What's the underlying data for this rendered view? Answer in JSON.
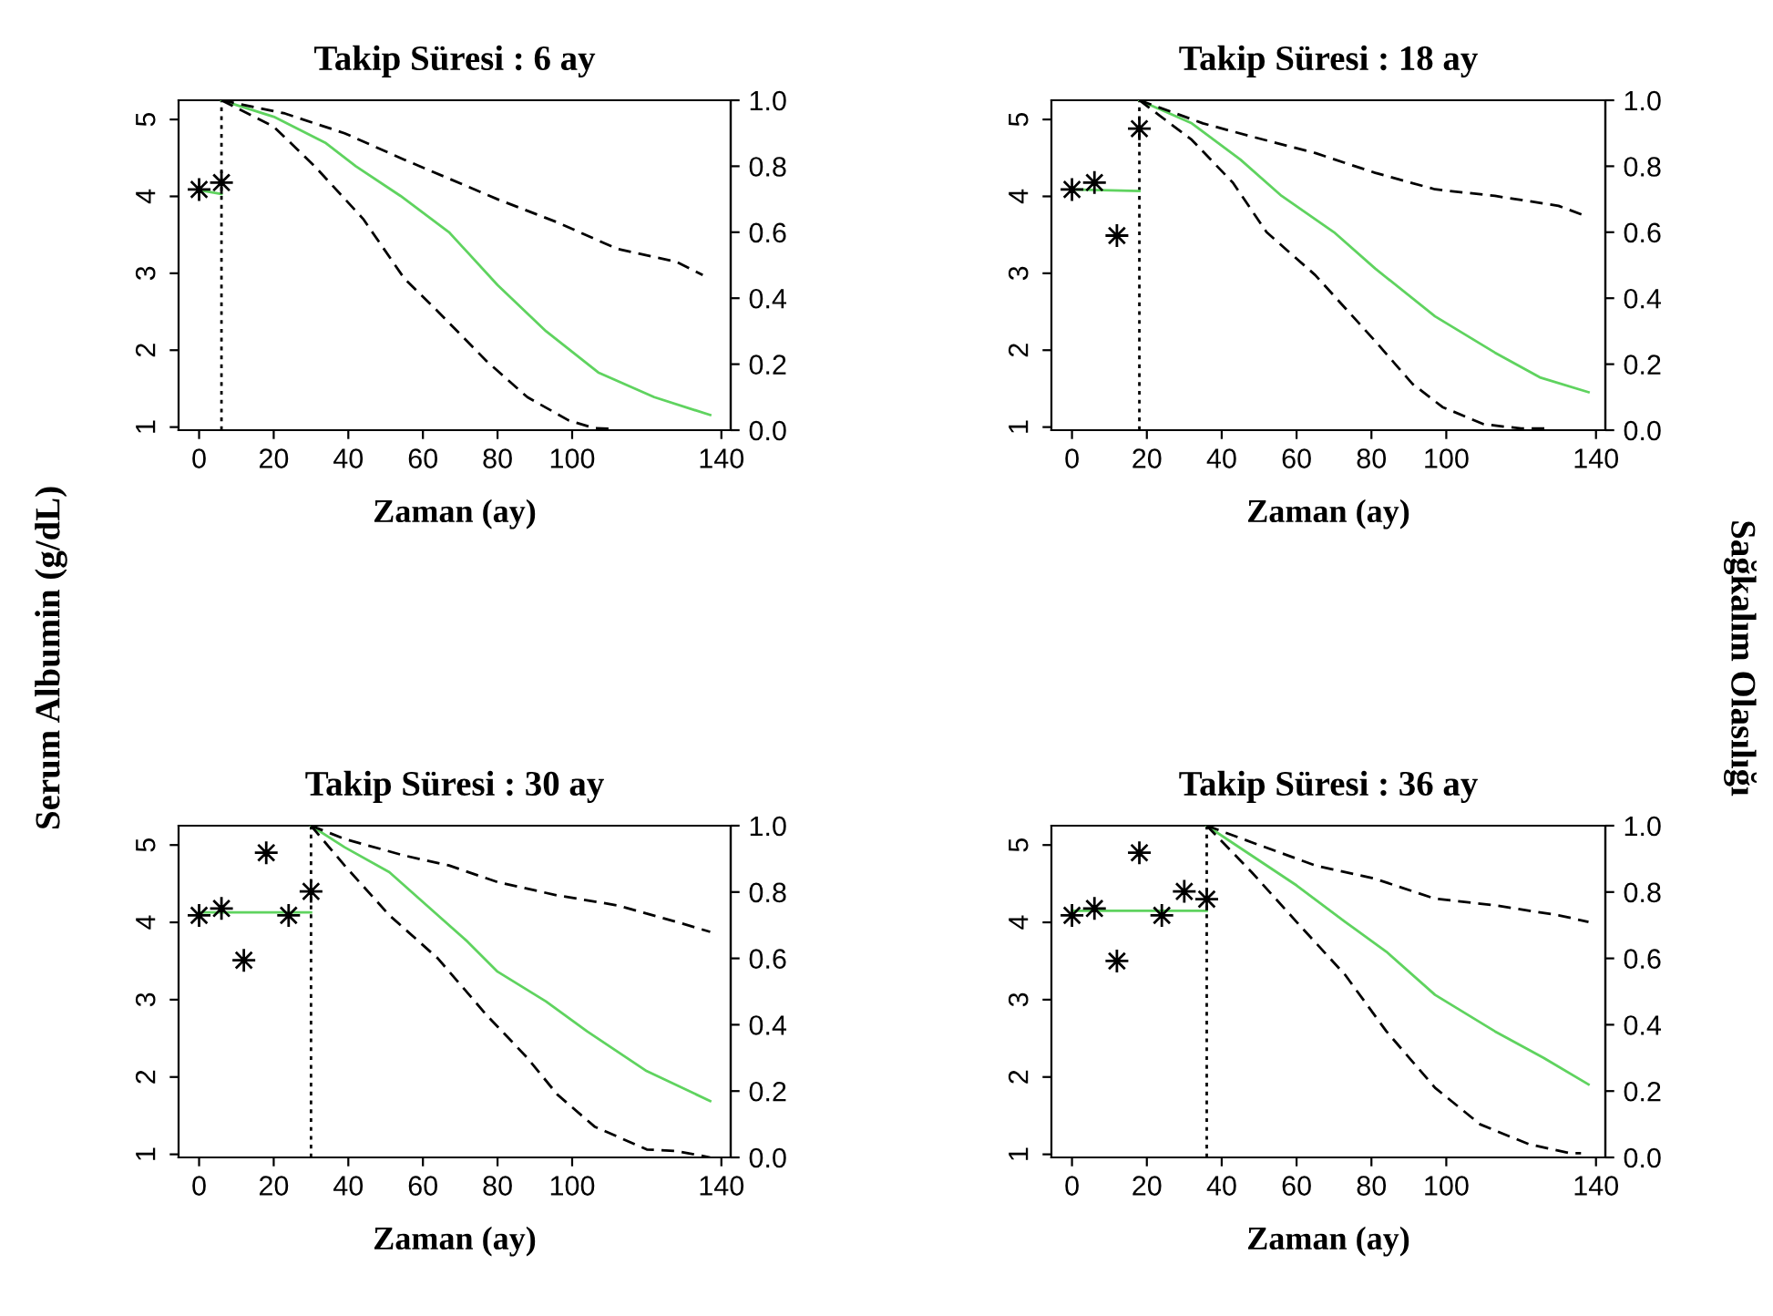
{
  "chart_data": [
    {
      "type": "line",
      "title": "Takip Süresi : 6 ay",
      "xlabel": "Zaman (ay)",
      "ylabel": "Serum Albumin (g/dL)",
      "xlim": [
        -5.5,
        142.5
      ],
      "xticks": [
        0,
        20,
        40,
        60,
        80,
        100,
        140
      ],
      "ylim": [
        0.96,
        5.25
      ],
      "yticks": [
        1,
        2,
        3,
        4,
        5
      ],
      "y2lim": [
        0,
        1
      ],
      "y2ticks": [
        {
          "value": 0,
          "label": "0.0"
        },
        {
          "value": 0.2,
          "label": "0.2"
        },
        {
          "value": 0.4,
          "label": "0.4"
        },
        {
          "value": 0.6,
          "label": "0.6"
        },
        {
          "value": 0.8,
          "label": "0.8"
        },
        {
          "value": 1,
          "label": "1.0"
        }
      ],
      "grid": false,
      "legend": false,
      "ref_lines": [
        {
          "axis": "x",
          "value": 6,
          "line_style": "dotted",
          "color": "#000000"
        }
      ],
      "series": [
        {
          "type": "scatter",
          "marker": "star",
          "color": "#000000",
          "x": [
            0,
            6
          ],
          "values": [
            4.09,
            4.18
          ]
        },
        {
          "color": "#5fd35f",
          "x": [
            0,
            6
          ],
          "values": [
            4.08,
            4.03
          ]
        },
        {
          "axis": "y2",
          "color": "#5fd35f",
          "x": [
            6,
            20,
            34,
            42,
            54,
            67,
            80,
            93,
            107,
            122,
            137
          ],
          "values": [
            1.0,
            0.95,
            0.87,
            0.8,
            0.71,
            0.6,
            0.44,
            0.3,
            0.175,
            0.1,
            0.046
          ]
        },
        {
          "axis": "y2",
          "color": "#000000",
          "line_style": "dashed",
          "x": [
            6,
            23,
            39,
            55,
            80,
            96,
            112,
            128,
            135
          ],
          "values": [
            1.0,
            0.96,
            0.9,
            0.82,
            0.7,
            0.63,
            0.55,
            0.51,
            0.47
          ]
        },
        {
          "axis": "y2",
          "color": "#000000",
          "line_style": "dashed",
          "x": [
            6,
            20,
            31,
            44,
            55,
            64,
            77,
            88,
            99,
            106,
            111
          ],
          "values": [
            1.0,
            0.92,
            0.8,
            0.64,
            0.46,
            0.36,
            0.21,
            0.1,
            0.03,
            0.006,
            0.004
          ]
        }
      ]
    },
    {
      "type": "line",
      "title": "Takip Süresi : 18 ay",
      "xlabel": "Zaman (ay)",
      "y2label": "Sağkalım Olasılığı",
      "xlim": [
        -5.5,
        142.5
      ],
      "xticks": [
        0,
        20,
        40,
        60,
        80,
        100,
        140
      ],
      "ylim": [
        0.96,
        5.25
      ],
      "yticks": [
        1,
        2,
        3,
        4,
        5
      ],
      "y2lim": [
        0,
        1
      ],
      "y2ticks": [
        {
          "value": 0,
          "label": "0.0"
        },
        {
          "value": 0.2,
          "label": "0.2"
        },
        {
          "value": 0.4,
          "label": "0.4"
        },
        {
          "value": 0.6,
          "label": "0.6"
        },
        {
          "value": 0.8,
          "label": "0.8"
        },
        {
          "value": 1,
          "label": "1.0"
        }
      ],
      "grid": false,
      "legend": false,
      "ref_lines": [
        {
          "axis": "x",
          "value": 18,
          "line_style": "dotted",
          "color": "#000000"
        }
      ],
      "series": [
        {
          "type": "scatter",
          "marker": "star",
          "color": "#000000",
          "x": [
            0,
            6,
            12,
            18
          ],
          "values": [
            4.09,
            4.18,
            3.49,
            4.88
          ]
        },
        {
          "color": "#5fd35f",
          "x": [
            0,
            18
          ],
          "values": [
            4.09,
            4.07
          ]
        },
        {
          "axis": "y2",
          "color": "#5fd35f",
          "x": [
            18,
            32,
            45,
            56,
            70,
            81,
            97,
            113,
            125,
            138
          ],
          "values": [
            1.0,
            0.93,
            0.82,
            0.71,
            0.6,
            0.49,
            0.345,
            0.235,
            0.16,
            0.115
          ]
        },
        {
          "axis": "y2",
          "color": "#000000",
          "line_style": "dashed",
          "x": [
            18,
            35,
            48,
            65,
            81,
            97,
            113,
            130,
            137
          ],
          "values": [
            1.0,
            0.93,
            0.89,
            0.84,
            0.78,
            0.73,
            0.71,
            0.68,
            0.65
          ]
        },
        {
          "axis": "y2",
          "color": "#000000",
          "line_style": "dashed",
          "x": [
            18,
            32,
            43,
            52,
            65,
            81,
            91,
            99,
            110,
            120,
            127
          ],
          "values": [
            1.0,
            0.88,
            0.75,
            0.6,
            0.47,
            0.27,
            0.14,
            0.07,
            0.018,
            0.005,
            0.005
          ]
        }
      ]
    },
    {
      "type": "line",
      "title": "Takip Süresi : 30 ay",
      "xlabel": "Zaman (ay)",
      "xlim": [
        -5.5,
        142.5
      ],
      "xticks": [
        0,
        20,
        40,
        60,
        80,
        100,
        140
      ],
      "ylim": [
        0.96,
        5.25
      ],
      "yticks": [
        1,
        2,
        3,
        4,
        5
      ],
      "y2lim": [
        0,
        1
      ],
      "y2ticks": [
        {
          "value": 0,
          "label": "0.0"
        },
        {
          "value": 0.2,
          "label": "0.2"
        },
        {
          "value": 0.4,
          "label": "0.4"
        },
        {
          "value": 0.6,
          "label": "0.6"
        },
        {
          "value": 0.8,
          "label": "0.8"
        },
        {
          "value": 1,
          "label": "1.0"
        }
      ],
      "grid": false,
      "legend": false,
      "ref_lines": [
        {
          "axis": "x",
          "value": 30,
          "line_style": "dotted",
          "color": "#000000"
        }
      ],
      "series": [
        {
          "type": "scatter",
          "marker": "star",
          "color": "#000000",
          "x": [
            0,
            6,
            12,
            18,
            24,
            30
          ],
          "values": [
            4.09,
            4.18,
            3.51,
            4.9,
            4.09,
            4.4
          ]
        },
        {
          "color": "#5fd35f",
          "x": [
            0,
            30
          ],
          "values": [
            4.13,
            4.13
          ]
        },
        {
          "axis": "y2",
          "color": "#5fd35f",
          "x": [
            30,
            39,
            51,
            60,
            72,
            80,
            93,
            104,
            120,
            137
          ],
          "values": [
            1.0,
            0.935,
            0.86,
            0.77,
            0.65,
            0.56,
            0.47,
            0.38,
            0.26,
            0.17
          ]
        },
        {
          "axis": "y2",
          "color": "#000000",
          "line_style": "dashed",
          "x": [
            30,
            39,
            55,
            67,
            80,
            96,
            112,
            128,
            137
          ],
          "values": [
            1.0,
            0.96,
            0.91,
            0.88,
            0.83,
            0.79,
            0.76,
            0.71,
            0.68
          ]
        },
        {
          "axis": "y2",
          "color": "#000000",
          "line_style": "dashed",
          "x": [
            30,
            39,
            51,
            64,
            77,
            88,
            96,
            106,
            120,
            128,
            137
          ],
          "values": [
            1.0,
            0.88,
            0.73,
            0.6,
            0.43,
            0.3,
            0.19,
            0.093,
            0.024,
            0.019,
            0.0
          ]
        }
      ]
    },
    {
      "type": "line",
      "title": "Takip Süresi : 36 ay",
      "xlabel": "Zaman (ay)",
      "xlim": [
        -5.5,
        142.5
      ],
      "xticks": [
        0,
        20,
        40,
        60,
        80,
        100,
        140
      ],
      "ylim": [
        0.96,
        5.25
      ],
      "yticks": [
        1,
        2,
        3,
        4,
        5
      ],
      "y2lim": [
        0,
        1
      ],
      "y2ticks": [
        {
          "value": 0,
          "label": "0.0"
        },
        {
          "value": 0.2,
          "label": "0.2"
        },
        {
          "value": 0.4,
          "label": "0.4"
        },
        {
          "value": 0.6,
          "label": "0.6"
        },
        {
          "value": 0.8,
          "label": "0.8"
        },
        {
          "value": 1,
          "label": "1.0"
        }
      ],
      "grid": false,
      "legend": false,
      "ref_lines": [
        {
          "axis": "x",
          "value": 36,
          "line_style": "dotted",
          "color": "#000000"
        }
      ],
      "series": [
        {
          "type": "scatter",
          "marker": "star",
          "color": "#000000",
          "x": [
            0,
            6,
            12,
            18,
            24,
            30,
            36
          ],
          "values": [
            4.09,
            4.18,
            3.5,
            4.9,
            4.09,
            4.4,
            4.3
          ]
        },
        {
          "color": "#5fd35f",
          "x": [
            0,
            36
          ],
          "values": [
            4.15,
            4.15
          ]
        },
        {
          "axis": "y2",
          "color": "#5fd35f",
          "x": [
            36,
            48,
            60,
            73,
            84,
            97,
            113,
            126,
            138
          ],
          "values": [
            1.0,
            0.91,
            0.82,
            0.71,
            0.62,
            0.49,
            0.38,
            0.3,
            0.22
          ]
        },
        {
          "axis": "y2",
          "color": "#000000",
          "line_style": "dashed",
          "x": [
            36,
            48,
            65,
            81,
            97,
            113,
            130,
            138
          ],
          "values": [
            1.0,
            0.95,
            0.88,
            0.84,
            0.78,
            0.76,
            0.73,
            0.71
          ]
        },
        {
          "axis": "y2",
          "color": "#000000",
          "line_style": "dashed",
          "x": [
            36,
            48,
            60,
            73,
            84,
            97,
            109,
            122,
            133,
            136
          ],
          "values": [
            1.0,
            0.86,
            0.71,
            0.55,
            0.38,
            0.21,
            0.1,
            0.04,
            0.013,
            0.013
          ]
        }
      ]
    }
  ]
}
